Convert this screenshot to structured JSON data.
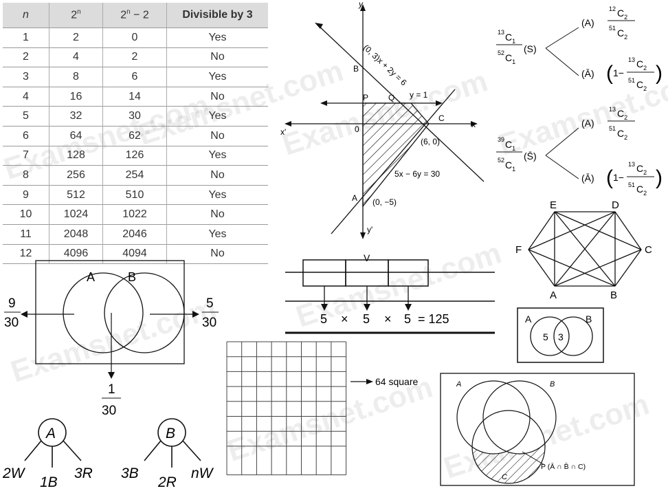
{
  "watermark": "Examsnet.com",
  "table": {
    "headers": [
      "n",
      "2",
      "2",
      "Divisible by 3"
    ],
    "header_sup": [
      "",
      "n",
      "n",
      ""
    ],
    "header_suffix": [
      "",
      "",
      " − 2",
      ""
    ],
    "rows": [
      [
        "1",
        "2",
        "0",
        "Yes"
      ],
      [
        "2",
        "4",
        "2",
        "No"
      ],
      [
        "3",
        "8",
        "6",
        "Yes"
      ],
      [
        "4",
        "16",
        "14",
        "No"
      ],
      [
        "5",
        "32",
        "30",
        "Yes"
      ],
      [
        "6",
        "64",
        "62",
        "No"
      ],
      [
        "7",
        "128",
        "126",
        "Yes"
      ],
      [
        "8",
        "256",
        "254",
        "No"
      ],
      [
        "9",
        "512",
        "510",
        "Yes"
      ],
      [
        "10",
        "1024",
        "1022",
        "No"
      ],
      [
        "11",
        "2048",
        "2046",
        "Yes"
      ],
      [
        "12",
        "4096",
        "4094",
        "No"
      ]
    ]
  },
  "graph": {
    "y_axis": "y",
    "x_axis": "x",
    "x_neg": "x'",
    "y_neg": "y'",
    "origin": "0",
    "B": "B",
    "P": "P",
    "Q": "Q",
    "C": "C",
    "A": "A",
    "line1": "(0, 3)x + 2y = 6",
    "line2": "y = 1",
    "point_c": "(6, 0)",
    "line3": "5x − 6y = 30",
    "point_a": "(0, −5)"
  },
  "tree1": {
    "root_num": "13",
    "root_num_c": "C",
    "root_num_k": "1",
    "root_den": "52",
    "root_den_c": "C",
    "root_den_k": "1",
    "event": "(S)",
    "branch_top": "(A)",
    "branch_bottom": "(Ā)",
    "frac_num": "12",
    "frac_num_c": "C",
    "frac_num_k": "2",
    "frac_den": "51",
    "frac_den_c": "C",
    "frac_den_k": "2",
    "minus_num": "13",
    "minus_num_c": "C",
    "minus_num_k": "2",
    "minus_den": "51",
    "minus_den_c": "C",
    "minus_den_k": "2",
    "one_minus": "1−"
  },
  "tree2": {
    "root_num": "39",
    "root_num_c": "C",
    "root_num_k": "1",
    "root_den": "52",
    "root_den_c": "C",
    "root_den_k": "1",
    "event": "(S̄)",
    "branch_top": "(A)",
    "branch_bottom": "(Ā)",
    "frac_num": "13",
    "frac_num_c": "C",
    "frac_num_k": "2",
    "frac_den": "51",
    "frac_den_c": "C",
    "frac_den_k": "2",
    "minus_num": "13",
    "minus_num_c": "C",
    "minus_num_k": "2",
    "minus_den": "51",
    "minus_den_c": "C",
    "minus_den_k": "2",
    "one_minus": "1−"
  },
  "hexagon": {
    "E": "E",
    "D": "D",
    "F": "F",
    "C": "C",
    "A": "A",
    "B": "B"
  },
  "venn_prob": {
    "A": "A",
    "B": "B",
    "left_num": "9",
    "left_den": "30",
    "right_num": "5",
    "right_den": "30",
    "bottom_num": "1",
    "bottom_den": "30"
  },
  "slots": {
    "top_label": "V",
    "s1": "5",
    "times1": "×",
    "s2": "5",
    "times2": "×",
    "s3": "5",
    "result": "= 125"
  },
  "venn_small": {
    "A": "A",
    "B": "B",
    "left": "5",
    "middle": "3"
  },
  "grid": {
    "label": "64 square"
  },
  "venn_three": {
    "A": "A",
    "B": "B",
    "C": "C",
    "label": "P (Ā ∩ B̄ ∩ C)"
  },
  "urn_a": {
    "name": "A",
    "left": "2W",
    "middle": "1B",
    "right": "3R"
  },
  "urn_b": {
    "name": "B",
    "left": "3B",
    "middle": "2R",
    "right": "nW"
  }
}
